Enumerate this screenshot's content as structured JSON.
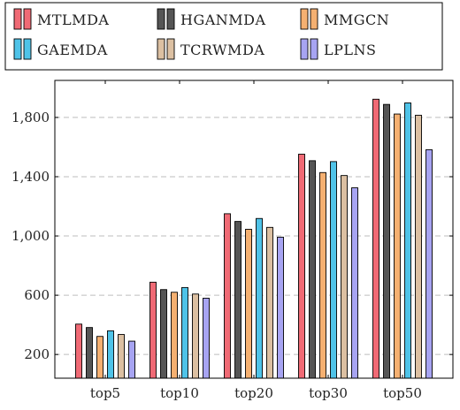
{
  "chart_data": {
    "type": "bar",
    "categories": [
      "top5",
      "top10",
      "top20",
      "top30",
      "top50"
    ],
    "series": [
      {
        "name": "MTLMDA",
        "color": "#f06a75",
        "values": [
          405,
          688,
          1150,
          1552,
          1923
        ]
      },
      {
        "name": "HGANMDA",
        "color": "#555555",
        "values": [
          382,
          638,
          1098,
          1508,
          1888
        ]
      },
      {
        "name": "MMGCN",
        "color": "#f5b071",
        "values": [
          322,
          620,
          1045,
          1428,
          1823
        ]
      },
      {
        "name": "GAEMDA",
        "color": "#4fc3e8",
        "values": [
          360,
          652,
          1118,
          1502,
          1898
        ]
      },
      {
        "name": "TCRWMDA",
        "color": "#dcc0a2",
        "values": [
          335,
          608,
          1058,
          1408,
          1815
        ]
      },
      {
        "name": "LPLNS",
        "color": "#a7a4f2",
        "values": [
          290,
          580,
          992,
          1325,
          1582
        ]
      }
    ],
    "yticks": [
      200,
      600,
      1000,
      1400,
      1800
    ],
    "ytick_labels": [
      "200",
      "600",
      "1,000",
      "1,400",
      "1,800"
    ],
    "ylim": [
      40,
      2050
    ],
    "grid": "horizontal-dashed",
    "legend_placement": "top",
    "legend_highlight_color": "#e8242c",
    "title": "",
    "xlabel": "",
    "ylabel": ""
  }
}
